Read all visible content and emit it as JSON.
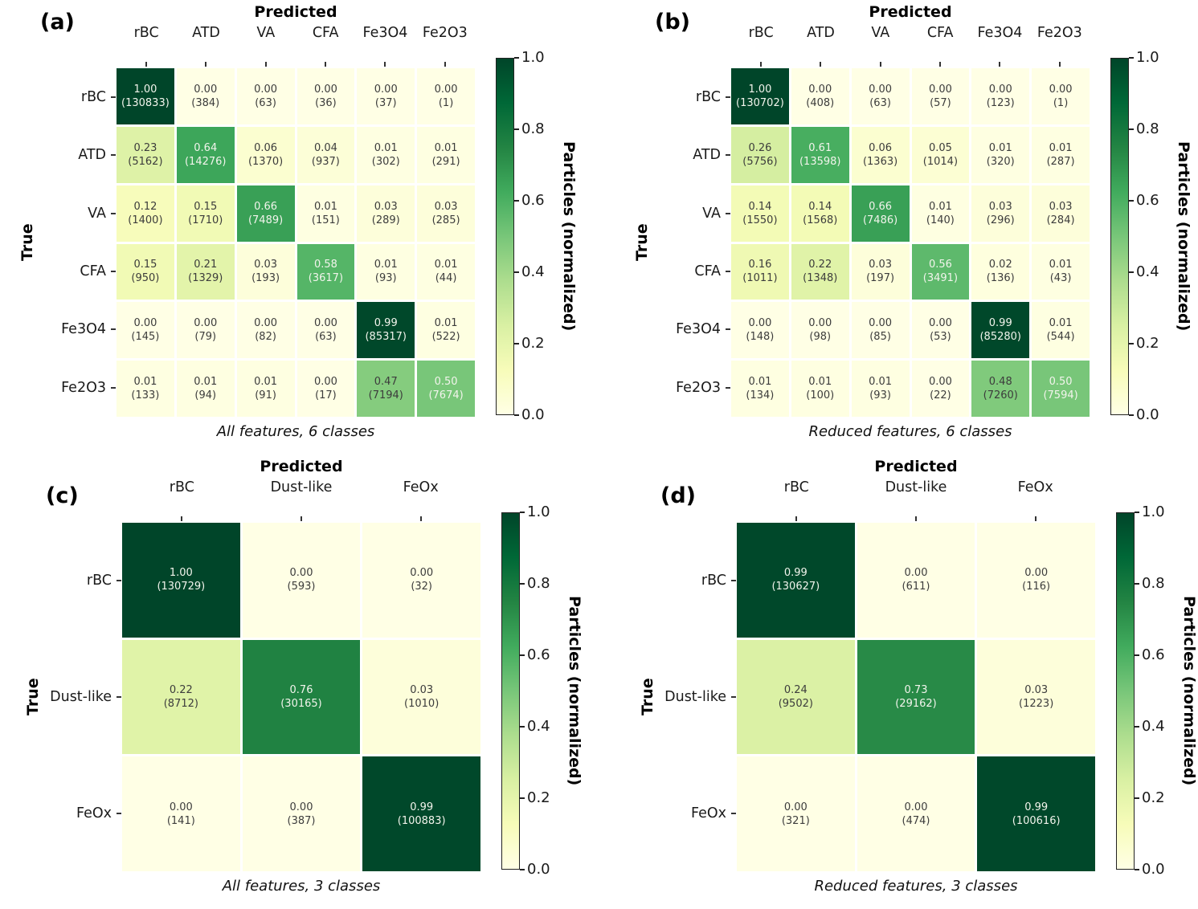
{
  "figure": {
    "type": "confusion-matrix-grid",
    "colors": {
      "cmap_low": "#ffffe5",
      "cmap_mid": "#78c679",
      "cmap_high": "#004529"
    }
  },
  "colorbar": {
    "label": "Particles (normalized)",
    "ticks": [
      "1.0",
      "0.8",
      "0.6",
      "0.4",
      "0.2",
      "0.0"
    ],
    "min": 0.0,
    "max": 1.0
  },
  "chart_data": [
    {
      "type": "heatmap",
      "panel_label": "(a)",
      "title": "Predicted",
      "ylabel": "True",
      "caption": "All features, 6 classes",
      "colormap": "YlGn",
      "value_range": [
        0.0,
        1.0
      ],
      "columns": [
        "rBC",
        "ATD",
        "VA",
        "CFA",
        "Fe3O4",
        "Fe2O3"
      ],
      "rows": [
        "rBC",
        "ATD",
        "VA",
        "CFA",
        "Fe3O4",
        "Fe2O3"
      ],
      "values": [
        [
          1.0,
          0.0,
          0.0,
          0.0,
          0.0,
          0.0
        ],
        [
          0.23,
          0.64,
          0.06,
          0.04,
          0.01,
          0.01
        ],
        [
          0.12,
          0.15,
          0.66,
          0.01,
          0.03,
          0.03
        ],
        [
          0.15,
          0.21,
          0.03,
          0.58,
          0.01,
          0.01
        ],
        [
          0.0,
          0.0,
          0.0,
          0.0,
          0.99,
          0.01
        ],
        [
          0.01,
          0.01,
          0.01,
          0.0,
          0.47,
          0.5
        ]
      ],
      "counts": [
        [
          130833,
          384,
          63,
          36,
          37,
          1
        ],
        [
          5162,
          14276,
          1370,
          937,
          302,
          291
        ],
        [
          1400,
          1710,
          7489,
          151,
          289,
          285
        ],
        [
          950,
          1329,
          193,
          3617,
          93,
          44
        ],
        [
          145,
          79,
          82,
          63,
          85317,
          522
        ],
        [
          133,
          94,
          91,
          17,
          7194,
          7674
        ]
      ]
    },
    {
      "type": "heatmap",
      "panel_label": "(b)",
      "title": "Predicted",
      "ylabel": "True",
      "caption": "Reduced features, 6 classes",
      "colormap": "YlGn",
      "value_range": [
        0.0,
        1.0
      ],
      "columns": [
        "rBC",
        "ATD",
        "VA",
        "CFA",
        "Fe3O4",
        "Fe2O3"
      ],
      "rows": [
        "rBC",
        "ATD",
        "VA",
        "CFA",
        "Fe3O4",
        "Fe2O3"
      ],
      "values": [
        [
          1.0,
          0.0,
          0.0,
          0.0,
          0.0,
          0.0
        ],
        [
          0.26,
          0.61,
          0.06,
          0.05,
          0.01,
          0.01
        ],
        [
          0.14,
          0.14,
          0.66,
          0.01,
          0.03,
          0.03
        ],
        [
          0.16,
          0.22,
          0.03,
          0.56,
          0.02,
          0.01
        ],
        [
          0.0,
          0.0,
          0.0,
          0.0,
          0.99,
          0.01
        ],
        [
          0.01,
          0.01,
          0.01,
          0.0,
          0.48,
          0.5
        ]
      ],
      "counts": [
        [
          130702,
          408,
          63,
          57,
          123,
          1
        ],
        [
          5756,
          13598,
          1363,
          1014,
          320,
          287
        ],
        [
          1550,
          1568,
          7486,
          140,
          296,
          284
        ],
        [
          1011,
          1348,
          197,
          3491,
          136,
          43
        ],
        [
          148,
          98,
          85,
          53,
          85280,
          544
        ],
        [
          134,
          100,
          93,
          22,
          7260,
          7594
        ]
      ]
    },
    {
      "type": "heatmap",
      "panel_label": "(c)",
      "title": "Predicted",
      "ylabel": "True",
      "caption": "All features, 3 classes",
      "colormap": "YlGn",
      "value_range": [
        0.0,
        1.0
      ],
      "columns": [
        "rBC",
        "Dust-like",
        "FeOx"
      ],
      "rows": [
        "rBC",
        "Dust-like",
        "FeOx"
      ],
      "values": [
        [
          1.0,
          0.0,
          0.0
        ],
        [
          0.22,
          0.76,
          0.03
        ],
        [
          0.0,
          0.0,
          0.99
        ]
      ],
      "counts": [
        [
          130729,
          593,
          32
        ],
        [
          8712,
          30165,
          1010
        ],
        [
          141,
          387,
          100883
        ]
      ]
    },
    {
      "type": "heatmap",
      "panel_label": "(d)",
      "title": "Predicted",
      "ylabel": "True",
      "caption": "Reduced features, 3 classes",
      "colormap": "YlGn",
      "value_range": [
        0.0,
        1.0
      ],
      "columns": [
        "rBC",
        "Dust-like",
        "FeOx"
      ],
      "rows": [
        "rBC",
        "Dust-like",
        "FeOx"
      ],
      "values": [
        [
          0.99,
          0.0,
          0.0
        ],
        [
          0.24,
          0.73,
          0.03
        ],
        [
          0.0,
          0.0,
          0.99
        ]
      ],
      "counts": [
        [
          130627,
          611,
          116
        ],
        [
          9502,
          29162,
          1223
        ],
        [
          321,
          474,
          100616
        ]
      ]
    }
  ]
}
